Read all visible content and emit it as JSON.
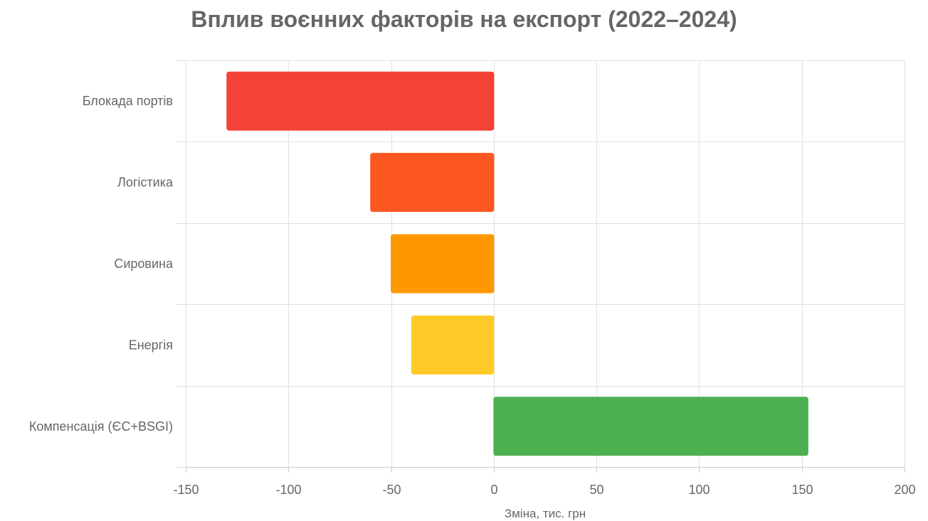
{
  "chart_data": {
    "type": "bar",
    "orientation": "horizontal",
    "title": "Вплив воєнних факторів на експорт (2022–2024)",
    "xlabel": "Зміна, тис. грн",
    "ylabel": "",
    "categories": [
      "Блокада портів",
      "Логістика",
      "Сировина",
      "Енергія",
      "Компенсація (ЄС+BSGI)"
    ],
    "values": [
      -130,
      -60,
      -50,
      -40,
      153
    ],
    "colors": [
      "#f44336",
      "#ff5722",
      "#ff9800",
      "#ffca28",
      "#4caf50"
    ],
    "xlim": [
      -150,
      200
    ],
    "xticks": [
      -150,
      -100,
      -50,
      0,
      50,
      100,
      150,
      200
    ],
    "xtick_labels": [
      "-150",
      "-100",
      "-50",
      "0",
      "50",
      "100",
      "150",
      "200"
    ],
    "grid": true,
    "legend": "none"
  }
}
